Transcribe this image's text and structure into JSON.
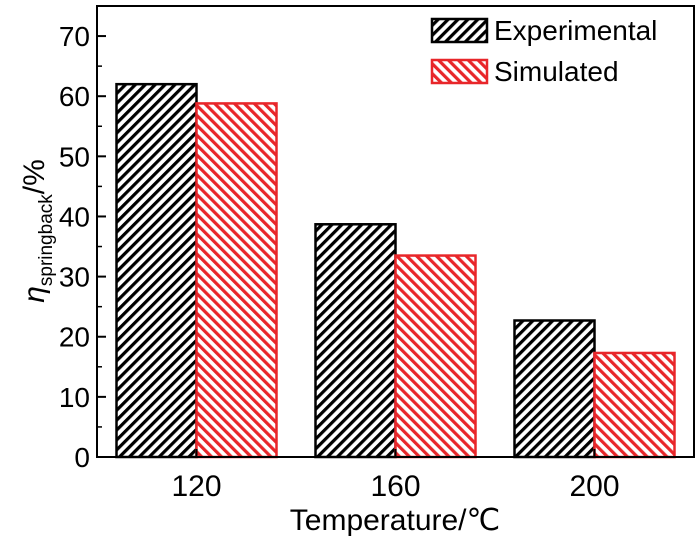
{
  "chart_data": {
    "type": "bar",
    "title": "",
    "xlabel": "Temperature/℃",
    "ylabel": {
      "symbol": "η",
      "subscript": "springback",
      "suffix": "/%"
    },
    "categories": [
      "120",
      "160",
      "200"
    ],
    "series": [
      {
        "name": "Experimental",
        "values": [
          62,
          38.7,
          22.7
        ],
        "color": "#000000"
      },
      {
        "name": "Simulated",
        "values": [
          58.8,
          33.5,
          17.3
        ],
        "color": "#e8262a"
      }
    ],
    "ylim": [
      0,
      75
    ],
    "yticks": [
      0,
      10,
      20,
      30,
      40,
      50,
      60,
      70
    ],
    "grid": false,
    "legend": "top-right"
  }
}
